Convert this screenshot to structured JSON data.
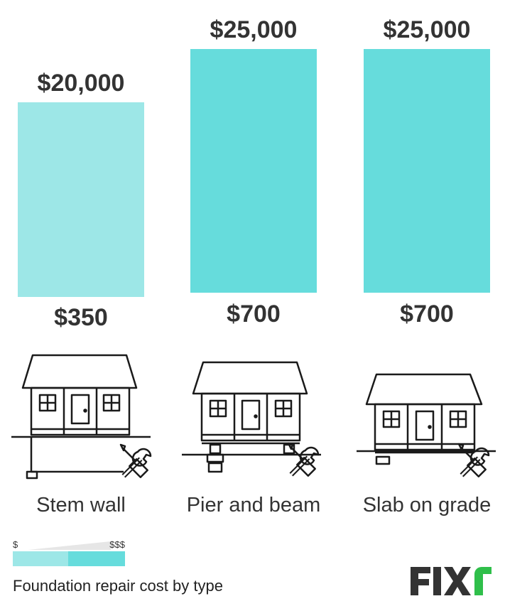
{
  "chart_data": {
    "type": "bar",
    "categories": [
      "Stem wall",
      "Pier and beam",
      "Slab on grade"
    ],
    "series": [
      {
        "values": [
          350,
          700,
          700
        ]
      },
      {
        "values": [
          20000,
          25000,
          25000
        ]
      }
    ],
    "low_labels": [
      "$350",
      "$700",
      "$700"
    ],
    "high_labels": [
      "$20,000",
      "$25,000",
      "$25,000"
    ],
    "bar_colors": [
      "#9de7e7",
      "#66dcdc",
      "#66dcdc"
    ],
    "ylim": [
      0,
      25000
    ]
  },
  "legend": {
    "min_label": "$",
    "max_label": "$$$",
    "low_color": "#9de7e7",
    "high_color": "#66dcdc"
  },
  "caption": "Foundation repair cost by type",
  "icons": [
    "house-stem-wall-icon",
    "house-pier-and-beam-icon",
    "house-slab-on-grade-icon",
    "wrench-screwdriver-icon"
  ],
  "logo": {
    "text": "FIXr",
    "dark_color": "#333333",
    "accent_color": "#2fbf4a"
  }
}
